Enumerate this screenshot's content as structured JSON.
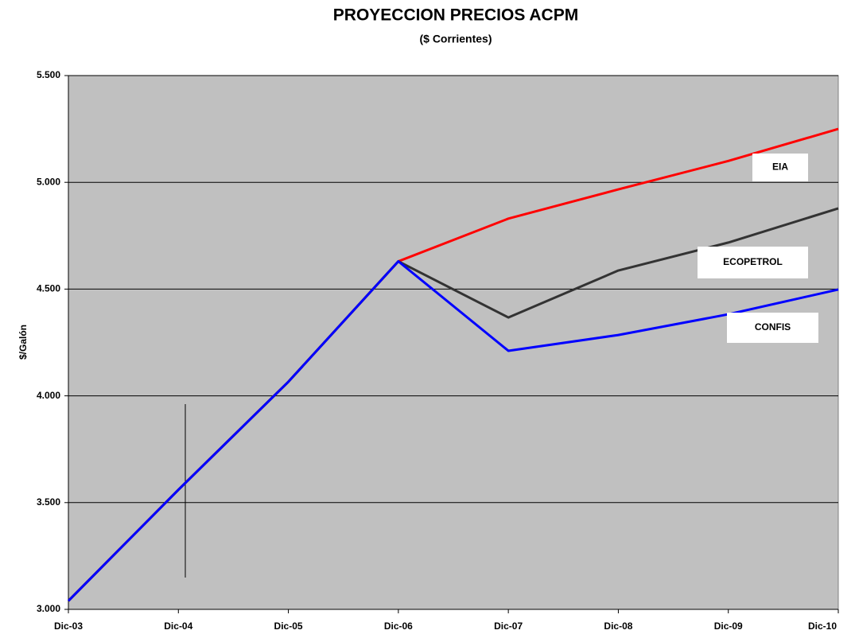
{
  "chart_data": {
    "type": "line",
    "title": "PROYECCION PRECIOS ACPM",
    "subtitle": "($ Corrientes)",
    "y_label": "$/Galón",
    "categories": [
      "Dic-03",
      "Dic-04",
      "Dic-05",
      "Dic-06",
      "Dic-07",
      "Dic-08",
      "Dic-09",
      "Dic-10"
    ],
    "series": [
      {
        "name": "EIA",
        "color": "#ff0000",
        "values": [
          3040,
          3560,
          4066,
          4630,
          4830,
          4967,
          5100,
          5250
        ]
      },
      {
        "name": "ECOPETROL",
        "color": "#333333",
        "values": [
          3040,
          3560,
          4066,
          4630,
          4367,
          4587,
          4718,
          4878
        ]
      },
      {
        "name": "CONFIS",
        "color": "#0000ff",
        "values": [
          3040,
          3560,
          4066,
          4630,
          4211,
          4285,
          4382,
          4498
        ]
      }
    ],
    "ylim": [
      3000,
      5500
    ],
    "yticks": [
      {
        "value": 3000,
        "label": "3.000"
      },
      {
        "value": 3500,
        "label": "3.500"
      },
      {
        "value": 4000,
        "label": "4.000"
      },
      {
        "value": 4500,
        "label": "4.500"
      },
      {
        "value": 5000,
        "label": "5.000"
      },
      {
        "value": 5500,
        "label": "5.500"
      }
    ],
    "grid": true,
    "plot_background": "#c0c0c0"
  }
}
